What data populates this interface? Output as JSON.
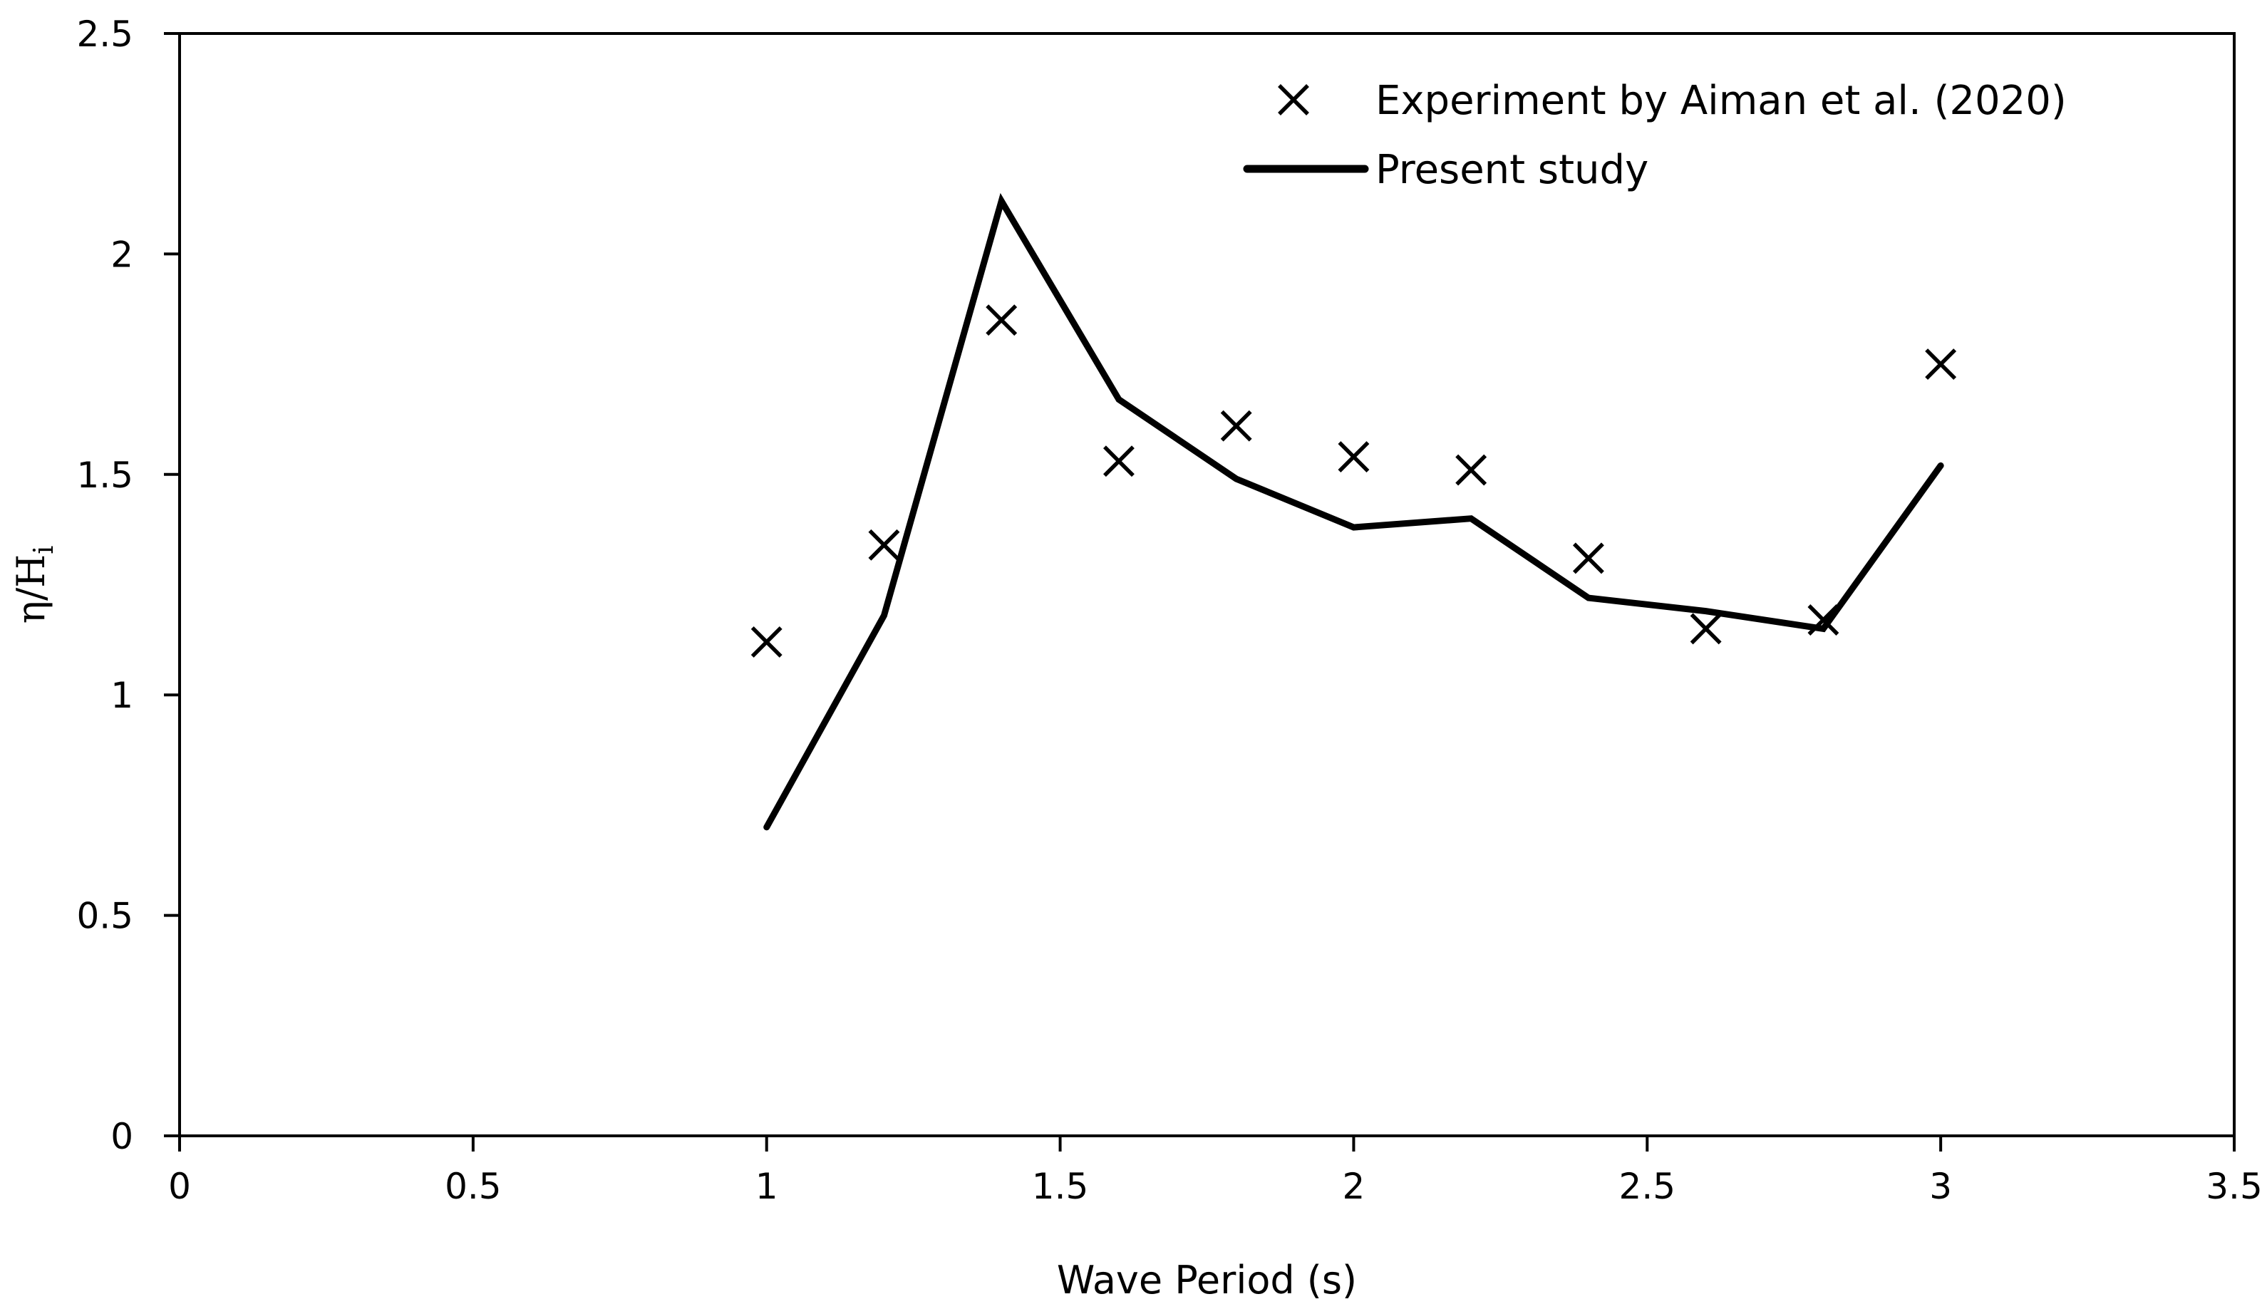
{
  "chart_data": {
    "type": "line",
    "title": "",
    "xlabel": "Wave Period (s)",
    "ylabel": {
      "main": "η/H",
      "sub": "i"
    },
    "xlim": [
      0,
      3.5
    ],
    "ylim": [
      0,
      2.5
    ],
    "x_ticks": [
      0,
      0.5,
      1,
      1.5,
      2,
      2.5,
      3,
      3.5
    ],
    "x_tick_labels": [
      "0",
      "0.5",
      "1",
      "1.5",
      "2",
      "2.5",
      "3",
      "3.5"
    ],
    "y_ticks": [
      0,
      0.5,
      1,
      1.5,
      2,
      2.5
    ],
    "y_tick_labels": [
      "0",
      "0.5",
      "1",
      "1.5",
      "2",
      "2.5"
    ],
    "grid": false,
    "legend_position": "top-right",
    "series": [
      {
        "name": "Experiment by Aiman et al. (2020)",
        "style": "marker-x",
        "color": "#000000",
        "x": [
          1.0,
          1.2,
          1.4,
          1.6,
          1.8,
          2.0,
          2.2,
          2.4,
          2.6,
          2.8,
          3.0
        ],
        "y": [
          1.12,
          1.34,
          1.85,
          1.53,
          1.61,
          1.54,
          1.51,
          1.31,
          1.15,
          1.17,
          1.75
        ]
      },
      {
        "name": "Present study",
        "style": "line",
        "color": "#000000",
        "x": [
          1.0,
          1.2,
          1.4,
          1.6,
          1.8,
          2.0,
          2.2,
          2.4,
          2.6,
          2.8,
          3.0
        ],
        "y": [
          0.7,
          1.18,
          2.12,
          1.67,
          1.49,
          1.38,
          1.4,
          1.22,
          1.19,
          1.15,
          1.52
        ]
      }
    ]
  }
}
